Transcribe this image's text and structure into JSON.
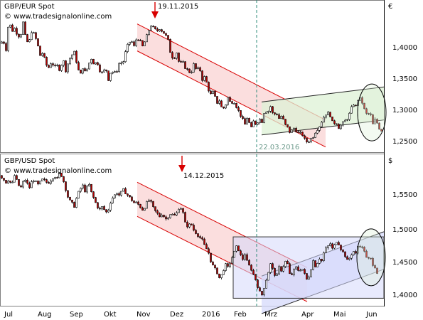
{
  "colors": {
    "up": "#ffffff",
    "down": "#b00000",
    "wick": "#000000",
    "red_channel": "#d80000",
    "red_fill": "#f9d3d3",
    "green_fill": "#ddf2d6",
    "blue_fill": "#d5d9fb",
    "divider": "#2e8b7a",
    "axis": "#000000"
  },
  "x_axis": {
    "months": [
      "Jul",
      "Aug",
      "Sep",
      "Okt",
      "Nov",
      "Dez",
      "2016",
      "Feb",
      "Mrz",
      "Apr",
      "Mai",
      "Jun"
    ]
  },
  "chart_data": [
    {
      "type": "candlestick",
      "title": "GBP/EUR Spot",
      "source": "© www.tradesignalonline.com",
      "unit_symbol": "€",
      "ylim": [
        1.225,
        1.475
      ],
      "yticks": [
        "1,4000",
        "1,3500",
        "1,3000",
        "1,2500"
      ],
      "ytick_values": [
        1.4,
        1.35,
        1.3,
        1.25
      ],
      "close_path": [
        [
          0,
          1.405
        ],
        [
          4,
          1.41
        ],
        [
          8,
          1.395
        ],
        [
          12,
          1.445
        ],
        [
          16,
          1.425
        ],
        [
          20,
          1.43
        ],
        [
          24,
          1.42
        ],
        [
          28,
          1.415
        ],
        [
          32,
          1.44
        ],
        [
          36,
          1.41
        ],
        [
          40,
          1.405
        ],
        [
          44,
          1.425
        ],
        [
          48,
          1.42
        ],
        [
          52,
          1.405
        ],
        [
          56,
          1.385
        ],
        [
          60,
          1.39
        ],
        [
          64,
          1.37
        ],
        [
          68,
          1.365
        ],
        [
          72,
          1.375
        ],
        [
          76,
          1.365
        ],
        [
          80,
          1.368
        ],
        [
          84,
          1.36
        ],
        [
          88,
          1.38
        ],
        [
          92,
          1.36
        ],
        [
          96,
          1.375
        ],
        [
          100,
          1.385
        ],
        [
          104,
          1.39
        ],
        [
          108,
          1.37
        ],
        [
          112,
          1.35
        ],
        [
          116,
          1.365
        ],
        [
          120,
          1.355
        ],
        [
          124,
          1.37
        ],
        [
          128,
          1.38
        ],
        [
          132,
          1.37
        ],
        [
          136,
          1.375
        ],
        [
          140,
          1.36
        ],
        [
          144,
          1.355
        ],
        [
          148,
          1.365
        ],
        [
          152,
          1.345
        ],
        [
          156,
          1.36
        ],
        [
          160,
          1.355
        ],
        [
          164,
          1.36
        ],
        [
          168,
          1.375
        ],
        [
          172,
          1.37
        ],
        [
          176,
          1.39
        ],
        [
          180,
          1.405
        ],
        [
          184,
          1.41
        ],
        [
          188,
          1.4
        ],
        [
          192,
          1.415
        ],
        [
          196,
          1.41
        ],
        [
          200,
          1.4
        ],
        [
          204,
          1.41
        ],
        [
          208,
          1.425
        ],
        [
          212,
          1.435
        ],
        [
          216,
          1.43
        ],
        [
          220,
          1.425
        ],
        [
          224,
          1.43
        ],
        [
          228,
          1.425
        ],
        [
          232,
          1.42
        ],
        [
          236,
          1.41
        ],
        [
          240,
          1.385
        ],
        [
          244,
          1.38
        ],
        [
          248,
          1.39
        ],
        [
          252,
          1.37
        ],
        [
          256,
          1.375
        ],
        [
          260,
          1.365
        ],
        [
          264,
          1.36
        ],
        [
          268,
          1.355
        ],
        [
          272,
          1.37
        ],
        [
          276,
          1.36
        ],
        [
          280,
          1.365
        ],
        [
          284,
          1.345
        ],
        [
          288,
          1.35
        ],
        [
          292,
          1.33
        ],
        [
          296,
          1.32
        ],
        [
          300,
          1.325
        ],
        [
          304,
          1.305
        ],
        [
          308,
          1.31
        ],
        [
          312,
          1.295
        ],
        [
          316,
          1.3
        ],
        [
          320,
          1.315
        ],
        [
          324,
          1.305
        ],
        [
          328,
          1.31
        ],
        [
          332,
          1.3
        ],
        [
          336,
          1.29
        ],
        [
          340,
          1.28
        ],
        [
          344,
          1.27
        ],
        [
          348,
          1.285
        ],
        [
          352,
          1.26
        ],
        [
          356,
          1.275
        ],
        [
          360,
          1.27
        ],
        [
          364,
          1.28
        ],
        [
          368,
          1.275
        ],
        [
          372,
          1.295
        ],
        [
          376,
          1.29
        ],
        [
          380,
          1.3
        ],
        [
          384,
          1.285
        ],
        [
          388,
          1.29
        ],
        [
          392,
          1.28
        ],
        [
          396,
          1.285
        ],
        [
          400,
          1.27
        ],
        [
          404,
          1.265
        ],
        [
          408,
          1.255
        ],
        [
          412,
          1.265
        ],
        [
          416,
          1.26
        ],
        [
          420,
          1.255
        ],
        [
          424,
          1.255
        ],
        [
          428,
          1.245
        ],
        [
          432,
          1.24
        ],
        [
          436,
          1.245
        ],
        [
          440,
          1.25
        ],
        [
          444,
          1.26
        ],
        [
          448,
          1.265
        ],
        [
          452,
          1.275
        ],
        [
          456,
          1.285
        ],
        [
          460,
          1.29
        ],
        [
          464,
          1.285
        ],
        [
          468,
          1.27
        ],
        [
          472,
          1.275
        ],
        [
          476,
          1.265
        ],
        [
          480,
          1.27
        ],
        [
          484,
          1.275
        ],
        [
          488,
          1.28
        ],
        [
          492,
          1.29
        ],
        [
          496,
          1.305
        ],
        [
          500,
          1.3
        ],
        [
          504,
          1.315
        ],
        [
          508,
          1.31
        ],
        [
          512,
          1.295
        ],
        [
          516,
          1.285
        ],
        [
          520,
          1.29
        ],
        [
          524,
          1.27
        ],
        [
          528,
          1.28
        ],
        [
          532,
          1.265
        ],
        [
          536,
          1.26
        ]
      ],
      "annotations": [
        {
          "text": "19.11.2015",
          "kind": "arrow-label",
          "at": [
            218,
            1.475
          ]
        },
        {
          "text": "22.03.2016",
          "kind": "date-label",
          "at": [
            362,
            1.245
          ]
        }
      ],
      "channels": [
        {
          "kind": "red-channel",
          "from": [
            193,
            1.415
          ],
          "to": [
            458,
            1.255
          ],
          "width": 0.045
        },
        {
          "kind": "green-channel",
          "from": [
            368,
            1.28
          ],
          "to": [
            540,
            1.305
          ],
          "width": 0.055
        }
      ],
      "circle": {
        "cx": 523,
        "cy": 1.29
      }
    },
    {
      "type": "candlestick",
      "title": "GBP/USD Spot",
      "source": "© www.tradesignalonline.com",
      "unit_symbol": "$",
      "ylim": [
        1.375,
        1.595
      ],
      "yticks": [
        "1,5500",
        "1,5000",
        "1,4500",
        "1,4000"
      ],
      "ytick_values": [
        1.55,
        1.5,
        1.45,
        1.4
      ],
      "close_path": [
        [
          0,
          1.565
        ],
        [
          4,
          1.56
        ],
        [
          8,
          1.555
        ],
        [
          12,
          1.56
        ],
        [
          16,
          1.55
        ],
        [
          20,
          1.565
        ],
        [
          24,
          1.555
        ],
        [
          28,
          1.545
        ],
        [
          32,
          1.555
        ],
        [
          36,
          1.56
        ],
        [
          40,
          1.545
        ],
        [
          44,
          1.555
        ],
        [
          48,
          1.56
        ],
        [
          52,
          1.55
        ],
        [
          56,
          1.555
        ],
        [
          60,
          1.56
        ],
        [
          64,
          1.555
        ],
        [
          68,
          1.555
        ],
        [
          72,
          1.56
        ],
        [
          76,
          1.565
        ],
        [
          80,
          1.56
        ],
        [
          84,
          1.57
        ],
        [
          88,
          1.56
        ],
        [
          92,
          1.545
        ],
        [
          96,
          1.53
        ],
        [
          100,
          1.525
        ],
        [
          104,
          1.52
        ],
        [
          108,
          1.535
        ],
        [
          112,
          1.545
        ],
        [
          116,
          1.55
        ],
        [
          120,
          1.54
        ],
        [
          124,
          1.555
        ],
        [
          128,
          1.54
        ],
        [
          132,
          1.53
        ],
        [
          136,
          1.52
        ],
        [
          140,
          1.515
        ],
        [
          144,
          1.52
        ],
        [
          148,
          1.51
        ],
        [
          152,
          1.515
        ],
        [
          156,
          1.53
        ],
        [
          160,
          1.535
        ],
        [
          164,
          1.54
        ],
        [
          168,
          1.535
        ],
        [
          172,
          1.545
        ],
        [
          176,
          1.54
        ],
        [
          180,
          1.535
        ],
        [
          184,
          1.53
        ],
        [
          188,
          1.525
        ],
        [
          192,
          1.525
        ],
        [
          196,
          1.52
        ],
        [
          200,
          1.515
        ],
        [
          204,
          1.52
        ],
        [
          208,
          1.53
        ],
        [
          212,
          1.525
        ],
        [
          216,
          1.515
        ],
        [
          220,
          1.51
        ],
        [
          224,
          1.505
        ],
        [
          228,
          1.51
        ],
        [
          232,
          1.5
        ],
        [
          236,
          1.505
        ],
        [
          240,
          1.51
        ],
        [
          244,
          1.505
        ],
        [
          248,
          1.51
        ],
        [
          252,
          1.52
        ],
        [
          256,
          1.515
        ],
        [
          260,
          1.495
        ],
        [
          264,
          1.49
        ],
        [
          268,
          1.495
        ],
        [
          272,
          1.485
        ],
        [
          276,
          1.48
        ],
        [
          280,
          1.475
        ],
        [
          284,
          1.47
        ],
        [
          288,
          1.46
        ],
        [
          292,
          1.455
        ],
        [
          296,
          1.44
        ],
        [
          300,
          1.43
        ],
        [
          304,
          1.425
        ],
        [
          308,
          1.415
        ],
        [
          312,
          1.42
        ],
        [
          316,
          1.435
        ],
        [
          320,
          1.43
        ],
        [
          324,
          1.44
        ],
        [
          328,
          1.45
        ],
        [
          332,
          1.46
        ],
        [
          336,
          1.455
        ],
        [
          340,
          1.44
        ],
        [
          344,
          1.45
        ],
        [
          348,
          1.435
        ],
        [
          352,
          1.43
        ],
        [
          356,
          1.42
        ],
        [
          360,
          1.41
        ],
        [
          364,
          1.395
        ],
        [
          368,
          1.39
        ],
        [
          372,
          1.405
        ],
        [
          376,
          1.42
        ],
        [
          380,
          1.435
        ],
        [
          384,
          1.425
        ],
        [
          388,
          1.415
        ],
        [
          392,
          1.43
        ],
        [
          396,
          1.425
        ],
        [
          400,
          1.44
        ],
        [
          404,
          1.435
        ],
        [
          408,
          1.415
        ],
        [
          412,
          1.425
        ],
        [
          416,
          1.43
        ],
        [
          420,
          1.425
        ],
        [
          424,
          1.43
        ],
        [
          428,
          1.42
        ],
        [
          432,
          1.41
        ],
        [
          436,
          1.425
        ],
        [
          440,
          1.44
        ],
        [
          444,
          1.43
        ],
        [
          448,
          1.445
        ],
        [
          452,
          1.44
        ],
        [
          456,
          1.455
        ],
        [
          460,
          1.46
        ],
        [
          464,
          1.465
        ],
        [
          468,
          1.455
        ],
        [
          472,
          1.47
        ],
        [
          476,
          1.465
        ],
        [
          480,
          1.455
        ],
        [
          484,
          1.45
        ],
        [
          488,
          1.44
        ],
        [
          492,
          1.445
        ],
        [
          496,
          1.455
        ],
        [
          500,
          1.45
        ],
        [
          504,
          1.465
        ],
        [
          508,
          1.46
        ],
        [
          512,
          1.455
        ],
        [
          516,
          1.44
        ],
        [
          520,
          1.445
        ],
        [
          524,
          1.435
        ],
        [
          528,
          1.43
        ],
        [
          532,
          1.415
        ]
      ],
      "annotations": [
        {
          "text": "14.12.2015",
          "kind": "arrow-label",
          "at": [
            256,
            1.575
          ]
        }
      ],
      "channels": [
        {
          "kind": "red-channel",
          "from": [
            193,
            1.53
          ],
          "to": [
            432,
            1.405
          ],
          "width": 0.05
        },
        {
          "kind": "blue-channel",
          "from": [
            368,
            1.39
          ],
          "to": [
            540,
            1.455
          ],
          "width": 0.055
        }
      ],
      "box": {
        "x0": 328,
        "x1": 540,
        "y0": 1.385,
        "y1": 1.475
      },
      "circle": {
        "cx": 522,
        "cy": 1.445
      }
    }
  ]
}
